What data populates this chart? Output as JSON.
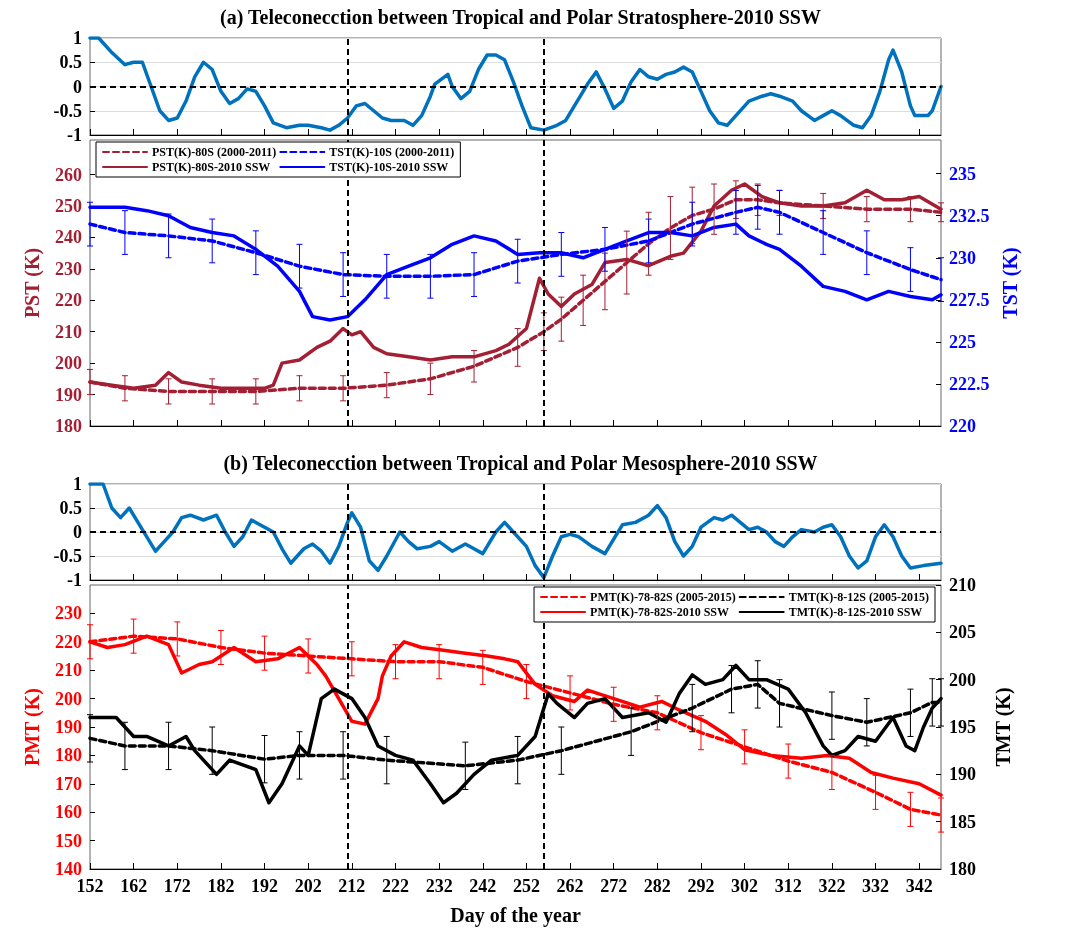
{
  "chart_data": [
    {
      "type": "line",
      "title": "(a) Teleconecction between Tropical and Polar Stratosphere-2010 SSW",
      "xlim": [
        152,
        347
      ],
      "xticks": [
        152,
        162,
        172,
        182,
        192,
        202,
        212,
        222,
        232,
        242,
        252,
        262,
        272,
        282,
        292,
        302,
        312,
        322,
        332,
        342
      ],
      "ylim": [
        -1,
        1
      ],
      "yticks": [
        -1,
        -0.5,
        0,
        0.5,
        1
      ],
      "grid": "y",
      "tick_labels": "y",
      "marker": "none",
      "legend": false,
      "ref_lines": [
        {
          "axis": "x",
          "value": 211,
          "color": "#000000",
          "line_style": "dashed"
        },
        {
          "axis": "x",
          "value": 256,
          "color": "#000000",
          "line_style": "dashed"
        },
        {
          "axis": "y",
          "value": 0,
          "color": "#000000",
          "line_style": "dashed"
        }
      ],
      "series": [
        {
          "color": "#0072bd",
          "line_style": "solid",
          "x": [
            152,
            154,
            157,
            160,
            162,
            164,
            166,
            168,
            170,
            172,
            174,
            176,
            178,
            180,
            182,
            184,
            186,
            188,
            190,
            192,
            194,
            197,
            200,
            202,
            205,
            207,
            209,
            211,
            213,
            215,
            217,
            219,
            221,
            224,
            226,
            228,
            230,
            231,
            234,
            235,
            237,
            239,
            241,
            243,
            245,
            247,
            249,
            251,
            253,
            256,
            259,
            261,
            263,
            266,
            268,
            270,
            272,
            274,
            276,
            278,
            280,
            282,
            284,
            286,
            288,
            290,
            292,
            294,
            296,
            298,
            300,
            303,
            306,
            308,
            310,
            313,
            315,
            318,
            320,
            322,
            324,
            327,
            329,
            331,
            333,
            335,
            336,
            338,
            340,
            341,
            344,
            345,
            347
          ],
          "values": [
            1,
            1,
            0.7,
            0.45,
            0.5,
            0.5,
            0,
            -0.5,
            -0.7,
            -0.65,
            -0.3,
            0.2,
            0.5,
            0.35,
            -0.1,
            -0.35,
            -0.25,
            -0.05,
            -0.1,
            -0.4,
            -0.75,
            -0.85,
            -0.8,
            -0.8,
            -0.85,
            -0.9,
            -0.8,
            -0.65,
            -0.4,
            -0.35,
            -0.5,
            -0.65,
            -0.7,
            -0.7,
            -0.8,
            -0.6,
            -0.2,
            0.05,
            0.25,
            0,
            -0.25,
            -0.1,
            0.35,
            0.65,
            0.65,
            0.55,
            0.1,
            -0.4,
            -0.85,
            -0.9,
            -0.8,
            -0.7,
            -0.4,
            0.05,
            0.3,
            -0.05,
            -0.45,
            -0.3,
            0.1,
            0.35,
            0.2,
            0.15,
            0.25,
            0.3,
            0.4,
            0.3,
            -0.1,
            -0.5,
            -0.75,
            -0.8,
            -0.6,
            -0.3,
            -0.2,
            -0.15,
            -0.2,
            -0.3,
            -0.5,
            -0.7,
            -0.6,
            -0.5,
            -0.6,
            -0.8,
            -0.85,
            -0.6,
            -0.1,
            0.55,
            0.75,
            0.3,
            -0.4,
            -0.6,
            -0.6,
            -0.5,
            0
          ]
        }
      ]
    },
    {
      "type": "line",
      "ylabel": "PST (K)",
      "y2label": "TST (K)",
      "xlim": [
        152,
        347
      ],
      "xticks": [
        152,
        162,
        172,
        182,
        192,
        202,
        212,
        222,
        232,
        242,
        252,
        262,
        272,
        282,
        292,
        302,
        312,
        322,
        332,
        342
      ],
      "ylim": [
        180,
        271
      ],
      "yticks": [
        180,
        190,
        200,
        210,
        220,
        230,
        240,
        250,
        260
      ],
      "y2lim": [
        220,
        237
      ],
      "y2ticks": [
        220,
        222.5,
        225,
        227.5,
        230,
        232.5,
        235
      ],
      "tick_labels": "y",
      "marker": "none",
      "legend": "top left",
      "ref_lines": [
        {
          "axis": "x",
          "value": 211,
          "color": "#000000",
          "line_style": "dashed"
        },
        {
          "axis": "x",
          "value": 256,
          "color": "#000000",
          "line_style": "dashed"
        }
      ],
      "series": [
        {
          "name": "PST(K)-80S (2000-2011)",
          "color": "#a31f34",
          "line_style": "dashed",
          "x": [
            152,
            160,
            170,
            180,
            190,
            200,
            210,
            220,
            230,
            240,
            250,
            256,
            260,
            265,
            270,
            275,
            280,
            285,
            290,
            295,
            300,
            305,
            310,
            320,
            330,
            340,
            347
          ],
          "values": [
            194,
            192,
            191,
            191,
            191,
            192,
            192,
            193,
            195,
            199,
            205,
            210,
            214,
            220,
            226,
            232,
            238,
            243,
            247,
            249,
            252,
            252,
            251,
            250,
            249,
            249,
            248
          ],
          "errors": [
            4,
            4,
            4,
            4,
            4,
            4,
            4,
            4,
            5,
            5,
            6,
            6,
            7,
            8,
            9,
            10,
            10,
            10,
            9,
            8,
            6,
            5,
            4,
            4,
            4,
            4,
            3
          ]
        },
        {
          "name": "PST(K)-80S-2010 SSW",
          "color": "#a31f34",
          "line_style": "solid",
          "x": [
            152,
            157,
            162,
            167,
            170,
            173,
            177,
            182,
            187,
            192,
            194,
            196,
            200,
            204,
            207,
            210,
            212,
            214,
            217,
            220,
            225,
            230,
            235,
            240,
            245,
            248,
            252,
            255,
            257,
            260,
            263,
            267,
            270,
            275,
            280,
            285,
            288,
            292,
            295,
            299,
            302,
            306,
            310,
            315,
            320,
            325,
            330,
            334,
            338,
            342,
            347
          ],
          "values": [
            194,
            193,
            192,
            193,
            197,
            194,
            193,
            192,
            192,
            192,
            193,
            200,
            201,
            205,
            207,
            211,
            209,
            210,
            205,
            203,
            202,
            201,
            202,
            202,
            204,
            206,
            211,
            227,
            222,
            218,
            222,
            225,
            232,
            233,
            231,
            234,
            235,
            242,
            250,
            255,
            257,
            253,
            251,
            250,
            250,
            251,
            255,
            252,
            252,
            253,
            249
          ]
        },
        {
          "name": "TST(K)-10S (2000-2011)",
          "color": "#0000ff",
          "line_style": "dashed",
          "axis": "y2",
          "x": [
            152,
            160,
            170,
            180,
            190,
            200,
            210,
            220,
            230,
            240,
            250,
            260,
            270,
            280,
            290,
            300,
            305,
            310,
            320,
            330,
            340,
            347
          ],
          "values": [
            232,
            231.5,
            231.3,
            231,
            230.3,
            229.5,
            229,
            228.9,
            228.9,
            229,
            229.8,
            230.2,
            230.5,
            231,
            232,
            232.7,
            233,
            232.7,
            231.5,
            230.3,
            229.3,
            228.7
          ],
          "errors": [
            1.3,
            1.3,
            1.3,
            1.3,
            1.3,
            1.3,
            1.3,
            1.3,
            1.3,
            1.3,
            1.3,
            1.3,
            1.3,
            1.3,
            1.3,
            1.3,
            1.3,
            1.3,
            1.3,
            1.3,
            1.3,
            1.3
          ]
        },
        {
          "name": "TST(K)-10S-2010 SSW",
          "color": "#0000ff",
          "line_style": "solid",
          "axis": "y2",
          "x": [
            152,
            160,
            165,
            170,
            175,
            180,
            185,
            190,
            195,
            200,
            203,
            207,
            211,
            215,
            220,
            225,
            230,
            235,
            240,
            245,
            250,
            255,
            260,
            265,
            270,
            275,
            280,
            285,
            290,
            295,
            300,
            303,
            307,
            310,
            315,
            320,
            325,
            330,
            335,
            340,
            345,
            347
          ],
          "values": [
            233,
            233,
            232.8,
            232.5,
            231.8,
            231.5,
            231.3,
            230.5,
            229.5,
            228,
            226.5,
            226.3,
            226.5,
            227.5,
            229,
            229.5,
            230,
            230.8,
            231.3,
            231,
            230.2,
            230.3,
            230.3,
            230,
            230.5,
            231,
            231.5,
            231.5,
            231.3,
            231.8,
            232,
            231.3,
            230.8,
            230.5,
            229.5,
            228.3,
            228,
            227.5,
            228,
            227.7,
            227.5,
            227.8
          ]
        }
      ]
    },
    {
      "type": "line",
      "title": "(b) Teleconecction between Tropical and Polar Mesosphere-2010 SSW",
      "xlim": [
        152,
        347
      ],
      "xticks": [
        152,
        162,
        172,
        182,
        192,
        202,
        212,
        222,
        232,
        242,
        252,
        262,
        272,
        282,
        292,
        302,
        312,
        322,
        332,
        342
      ],
      "ylim": [
        -1,
        1
      ],
      "yticks": [
        -1,
        -0.5,
        0,
        0.5,
        1
      ],
      "grid": "y",
      "tick_labels": "y",
      "marker": "none",
      "legend": false,
      "ref_lines": [
        {
          "axis": "x",
          "value": 211,
          "color": "#000000",
          "line_style": "dashed"
        },
        {
          "axis": "x",
          "value": 256,
          "color": "#000000",
          "line_style": "dashed"
        },
        {
          "axis": "y",
          "value": 0,
          "color": "#000000",
          "line_style": "dashed"
        }
      ],
      "series": [
        {
          "color": "#0072bd",
          "line_style": "solid",
          "x": [
            152,
            155,
            157,
            159,
            161,
            164,
            167,
            169,
            171,
            173,
            175,
            178,
            181,
            183,
            185,
            187,
            189,
            192,
            194,
            196,
            198,
            201,
            203,
            205,
            207,
            209,
            211,
            212,
            214,
            216,
            218,
            220,
            223,
            225,
            227,
            230,
            232,
            235,
            238,
            240,
            242,
            245,
            247,
            249,
            252,
            254,
            256,
            258,
            260,
            262,
            264,
            267,
            270,
            272,
            274,
            277,
            280,
            282,
            284,
            286,
            288,
            290,
            292,
            295,
            297,
            299,
            301,
            303,
            305,
            307,
            309,
            311,
            313,
            315,
            318,
            320,
            322,
            324,
            326,
            328,
            330,
            332,
            334,
            336,
            338,
            340,
            343,
            347
          ],
          "values": [
            1,
            1,
            0.5,
            0.3,
            0.5,
            0.05,
            -0.4,
            -0.2,
            0,
            0.3,
            0.35,
            0.25,
            0.35,
            0,
            -0.3,
            -0.1,
            0.25,
            0.1,
            0,
            -0.35,
            -0.65,
            -0.35,
            -0.25,
            -0.4,
            -0.65,
            -0.3,
            0.2,
            0.4,
            0.1,
            -0.6,
            -0.8,
            -0.5,
            0,
            -0.2,
            -0.35,
            -0.3,
            -0.2,
            -0.4,
            -0.25,
            -0.35,
            -0.45,
            0,
            0.2,
            0,
            -0.3,
            -0.7,
            -0.95,
            -0.5,
            -0.1,
            -0.05,
            -0.1,
            -0.3,
            -0.45,
            -0.15,
            0.15,
            0.2,
            0.35,
            0.55,
            0.3,
            -0.2,
            -0.5,
            -0.3,
            0.1,
            0.3,
            0.25,
            0.35,
            0.2,
            0.05,
            0.1,
            0,
            -0.2,
            -0.3,
            -0.1,
            0.05,
            0,
            0.1,
            0.15,
            -0.1,
            -0.5,
            -0.75,
            -0.6,
            -0.1,
            0.15,
            -0.1,
            -0.5,
            -0.75,
            -0.7,
            -0.65
          ]
        }
      ]
    },
    {
      "type": "line",
      "xlabel": "Day of the year",
      "ylabel": "PMT (K)",
      "y2label": "TMT (K)",
      "xlim": [
        152,
        347
      ],
      "xticks": [
        152,
        162,
        172,
        182,
        192,
        202,
        212,
        222,
        232,
        242,
        252,
        262,
        272,
        282,
        292,
        302,
        312,
        322,
        332,
        342
      ],
      "ylim": [
        140,
        240
      ],
      "yticks": [
        140,
        150,
        160,
        170,
        180,
        190,
        200,
        210,
        220,
        230
      ],
      "y2lim": [
        180,
        210
      ],
      "y2ticks": [
        180,
        185,
        190,
        195,
        200,
        205,
        210
      ],
      "marker": "none",
      "legend": "top right",
      "ref_lines": [
        {
          "axis": "x",
          "value": 211,
          "color": "#000000",
          "line_style": "dashed"
        },
        {
          "axis": "x",
          "value": 256,
          "color": "#000000",
          "line_style": "dashed"
        }
      ],
      "series": [
        {
          "name": "PMT(K)-78-82S (2005-2015)",
          "color": "#ff0000",
          "line_style": "dashed",
          "x": [
            152,
            162,
            172,
            182,
            192,
            202,
            212,
            222,
            232,
            242,
            252,
            262,
            272,
            282,
            292,
            302,
            312,
            322,
            332,
            340,
            347
          ],
          "values": [
            220,
            222,
            221,
            218,
            216,
            215,
            214,
            213,
            213,
            211,
            206,
            202,
            198,
            195,
            188,
            183,
            178,
            174,
            167,
            161,
            159
          ],
          "errors": [
            6,
            6,
            6,
            6,
            6,
            6,
            6,
            6,
            6,
            6,
            6,
            6,
            6,
            6,
            6,
            6,
            6,
            6,
            6,
            6,
            6
          ]
        },
        {
          "name": "PMT(K)-78-82S-2010 SSW",
          "color": "#ff0000",
          "line_style": "solid",
          "x": [
            152,
            156,
            160,
            165,
            170,
            173,
            177,
            180,
            185,
            190,
            195,
            200,
            204,
            206,
            209,
            212,
            215,
            218,
            219,
            221,
            224,
            228,
            233,
            238,
            243,
            247,
            250,
            254,
            258,
            263,
            266,
            272,
            278,
            283,
            287,
            293,
            298,
            302,
            308,
            315,
            321,
            326,
            331,
            336,
            342,
            347
          ],
          "values": [
            220,
            218,
            219,
            222,
            219,
            209,
            212,
            213,
            218,
            213,
            214,
            218,
            212,
            208,
            200,
            192,
            191,
            200,
            208,
            215,
            220,
            218,
            217,
            216,
            215,
            214,
            213,
            205,
            201,
            199,
            203,
            200,
            197,
            199,
            196,
            192,
            187,
            182,
            180,
            179,
            180,
            179,
            174,
            172,
            170,
            166
          ]
        },
        {
          "name": "TMT(K)-8-12S (2005-2015)",
          "color": "#000000",
          "line_style": "dashed",
          "axis": "y2",
          "x": [
            152,
            160,
            170,
            180,
            192,
            200,
            210,
            220,
            238,
            250,
            260,
            276,
            290,
            299,
            305,
            310,
            322,
            330,
            340,
            345,
            347
          ],
          "values": [
            193.8,
            193,
            193,
            192.5,
            191.6,
            192,
            192,
            191.5,
            190.9,
            191.5,
            192.5,
            194.5,
            197,
            199,
            199.5,
            197.5,
            196.2,
            195.5,
            196.5,
            197.6,
            197.6
          ],
          "errors": [
            2.5,
            2.5,
            2.5,
            2.5,
            2.5,
            2.5,
            2.5,
            2.5,
            2.5,
            2.5,
            2.5,
            2.5,
            2.5,
            2.5,
            2.5,
            2.5,
            2.5,
            2.5,
            2.5,
            2.5,
            2.5
          ]
        },
        {
          "name": "TMT(K)-8-12S-2010 SSW",
          "color": "#000000",
          "line_style": "solid",
          "axis": "y2",
          "x": [
            152,
            158,
            162,
            165,
            170,
            174,
            176,
            181,
            184,
            190,
            193,
            196,
            200,
            202,
            205,
            208,
            212,
            215,
            218,
            222,
            226,
            230,
            233,
            236,
            240,
            244,
            250,
            254,
            257,
            259,
            263,
            266,
            270,
            274,
            280,
            284,
            287,
            290,
            293,
            297,
            300,
            303,
            307,
            312,
            316,
            320,
            322,
            325,
            328,
            332,
            336,
            339,
            341,
            343,
            345,
            347
          ],
          "values": [
            196,
            196,
            194,
            194,
            193,
            194,
            192.5,
            190,
            191.5,
            190.5,
            187,
            189,
            193,
            192,
            198,
            199,
            198,
            196,
            193,
            192,
            191.5,
            189,
            187,
            188,
            190,
            191.5,
            192,
            194,
            198.5,
            197.5,
            196,
            197.5,
            198,
            196,
            196.5,
            195.5,
            198.5,
            200.5,
            199.5,
            200,
            201.5,
            200,
            200,
            199,
            196.5,
            193,
            192,
            192.5,
            194,
            193.5,
            196,
            193,
            192.5,
            195,
            197,
            198
          ]
        }
      ]
    }
  ]
}
